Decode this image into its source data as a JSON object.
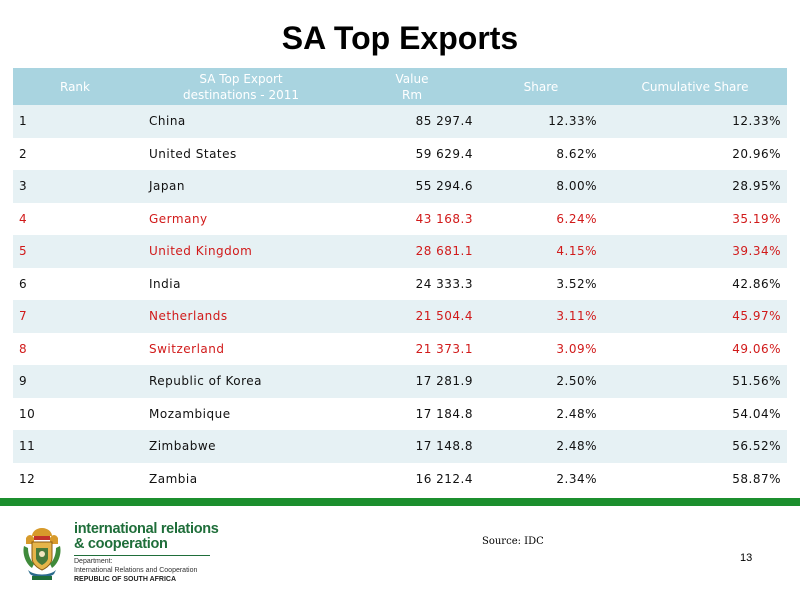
{
  "title": "SA Top Exports",
  "table": {
    "headers": {
      "rank": "Rank",
      "dest_line1": "SA  Top Export",
      "dest_line2": "destinations - 2011",
      "value_line1": "Value",
      "value_line2": "Rm",
      "share": "Share",
      "cumulative": "Cumulative Share"
    },
    "rows": [
      {
        "rank": "1",
        "country": "China",
        "value": "85 297.4",
        "share": "12.33%",
        "cumulative": "12.33%",
        "highlight": false
      },
      {
        "rank": "2",
        "country": "United States",
        "value": "59 629.4",
        "share": "8.62%",
        "cumulative": "20.96%",
        "highlight": false
      },
      {
        "rank": "3",
        "country": "Japan",
        "value": "55 294.6",
        "share": "8.00%",
        "cumulative": "28.95%",
        "highlight": false
      },
      {
        "rank": "4",
        "country": "Germany",
        "value": "43 168.3",
        "share": "6.24%",
        "cumulative": "35.19%",
        "highlight": true
      },
      {
        "rank": "5",
        "country": "United Kingdom",
        "value": "28 681.1",
        "share": "4.15%",
        "cumulative": "39.34%",
        "highlight": true
      },
      {
        "rank": "6",
        "country": "India",
        "value": "24 333.3",
        "share": "3.52%",
        "cumulative": "42.86%",
        "highlight": false
      },
      {
        "rank": "7",
        "country": "Netherlands",
        "value": "21 504.4",
        "share": "3.11%",
        "cumulative": "45.97%",
        "highlight": true
      },
      {
        "rank": "8",
        "country": "Switzerland",
        "value": "21 373.1",
        "share": "3.09%",
        "cumulative": "49.06%",
        "highlight": true
      },
      {
        "rank": "9",
        "country": "Republic of Korea",
        "value": "17 281.9",
        "share": "2.50%",
        "cumulative": "51.56%",
        "highlight": false
      },
      {
        "rank": "10",
        "country": "Mozambique",
        "value": "17 184.8",
        "share": "2.48%",
        "cumulative": "54.04%",
        "highlight": false
      },
      {
        "rank": "11",
        "country": "Zimbabwe",
        "value": "17 148.8",
        "share": "2.48%",
        "cumulative": "56.52%",
        "highlight": false
      },
      {
        "rank": "12",
        "country": "Zambia",
        "value": "16 212.4",
        "share": "2.34%",
        "cumulative": "58.87%",
        "highlight": false
      }
    ]
  },
  "colors": {
    "header_bg": "#a9d4e0",
    "row_alt_bg": "#e6f1f4",
    "highlight_text": "#d11a1a",
    "footer_bar": "#1c8f2e",
    "logo_green": "#1f6e3a"
  },
  "logo": {
    "icon": "coat-of-arms-icon",
    "line1": "international relations",
    "line2": "& cooperation",
    "line3": "Department:",
    "line4": "International Relations and Cooperation",
    "line5": "REPUBLIC OF SOUTH AFRICA"
  },
  "footer": {
    "source": "Source: IDC",
    "page_number": "13"
  }
}
